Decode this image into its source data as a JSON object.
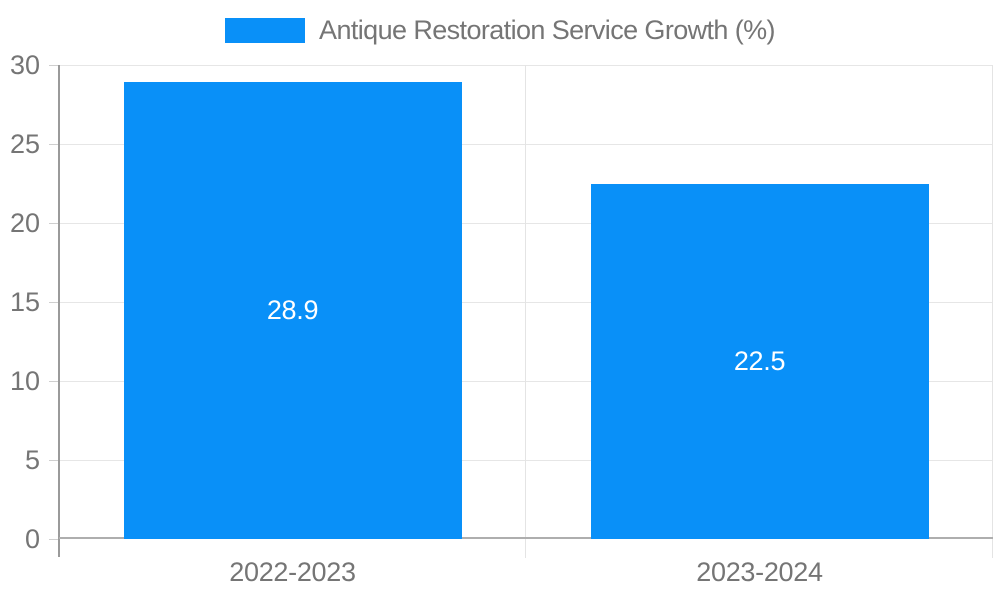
{
  "legend": {
    "label": "Antique Restoration Service Growth (%)",
    "swatch_color": "#0990f8"
  },
  "chart_data": {
    "type": "bar",
    "title": "Antique Restoration Service Growth (%)",
    "categories": [
      "2022-2023",
      "2023-2024"
    ],
    "values": [
      28.9,
      22.5
    ],
    "value_labels": [
      "28.9",
      "22.5"
    ],
    "ylim": [
      0,
      30
    ],
    "yticks": [
      0,
      5,
      10,
      15,
      20,
      25,
      30
    ],
    "grid": true,
    "legend_position": "top",
    "bar_color": "#0990f8",
    "value_label_color": "#ffffff",
    "axis_text_color": "#757575",
    "gridline_color": "#e6e6e6",
    "tick_color": "#cfcfcf",
    "separator_color": "#e4e4e4",
    "y_axis_line_color": "#9a9a9a",
    "x_axis_line_color": "#aeaeae"
  }
}
